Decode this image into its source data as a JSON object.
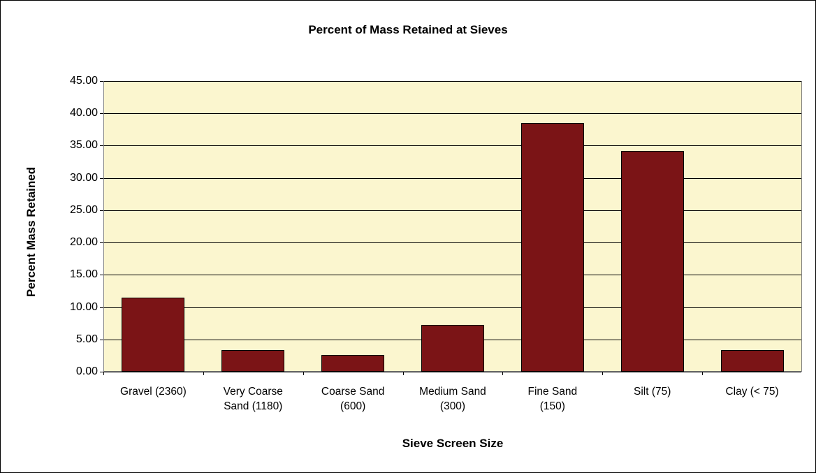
{
  "chart_data": {
    "type": "bar",
    "title": "Percent of Mass Retained at Sieves",
    "x_label": "Sieve Screen Size",
    "y_label": "Percent Mass Retained",
    "categories": [
      "Gravel (2360)",
      "Very Coarse Sand (1180)",
      "Coarse Sand (600)",
      "Medium Sand (300)",
      "Fine Sand (150)",
      "Silt (75)",
      "Clay (< 75)"
    ],
    "values": [
      11.5,
      3.3,
      2.6,
      7.2,
      38.5,
      34.2,
      3.3
    ],
    "color": "#7b1416",
    "plot_background": "#fbf6cf",
    "ylim": [
      0,
      45
    ],
    "yticks": [
      {
        "value": 0,
        "label": "0.00"
      },
      {
        "value": 5,
        "label": "5.00"
      },
      {
        "value": 10,
        "label": "10.00"
      },
      {
        "value": 15,
        "label": "15.00"
      },
      {
        "value": 20,
        "label": "20.00"
      },
      {
        "value": 25,
        "label": "25.00"
      },
      {
        "value": 30,
        "label": "30.00"
      },
      {
        "value": 35,
        "label": "35.00"
      },
      {
        "value": 40,
        "label": "40.00"
      },
      {
        "value": 45,
        "label": "45.00"
      }
    ],
    "grid": true
  }
}
